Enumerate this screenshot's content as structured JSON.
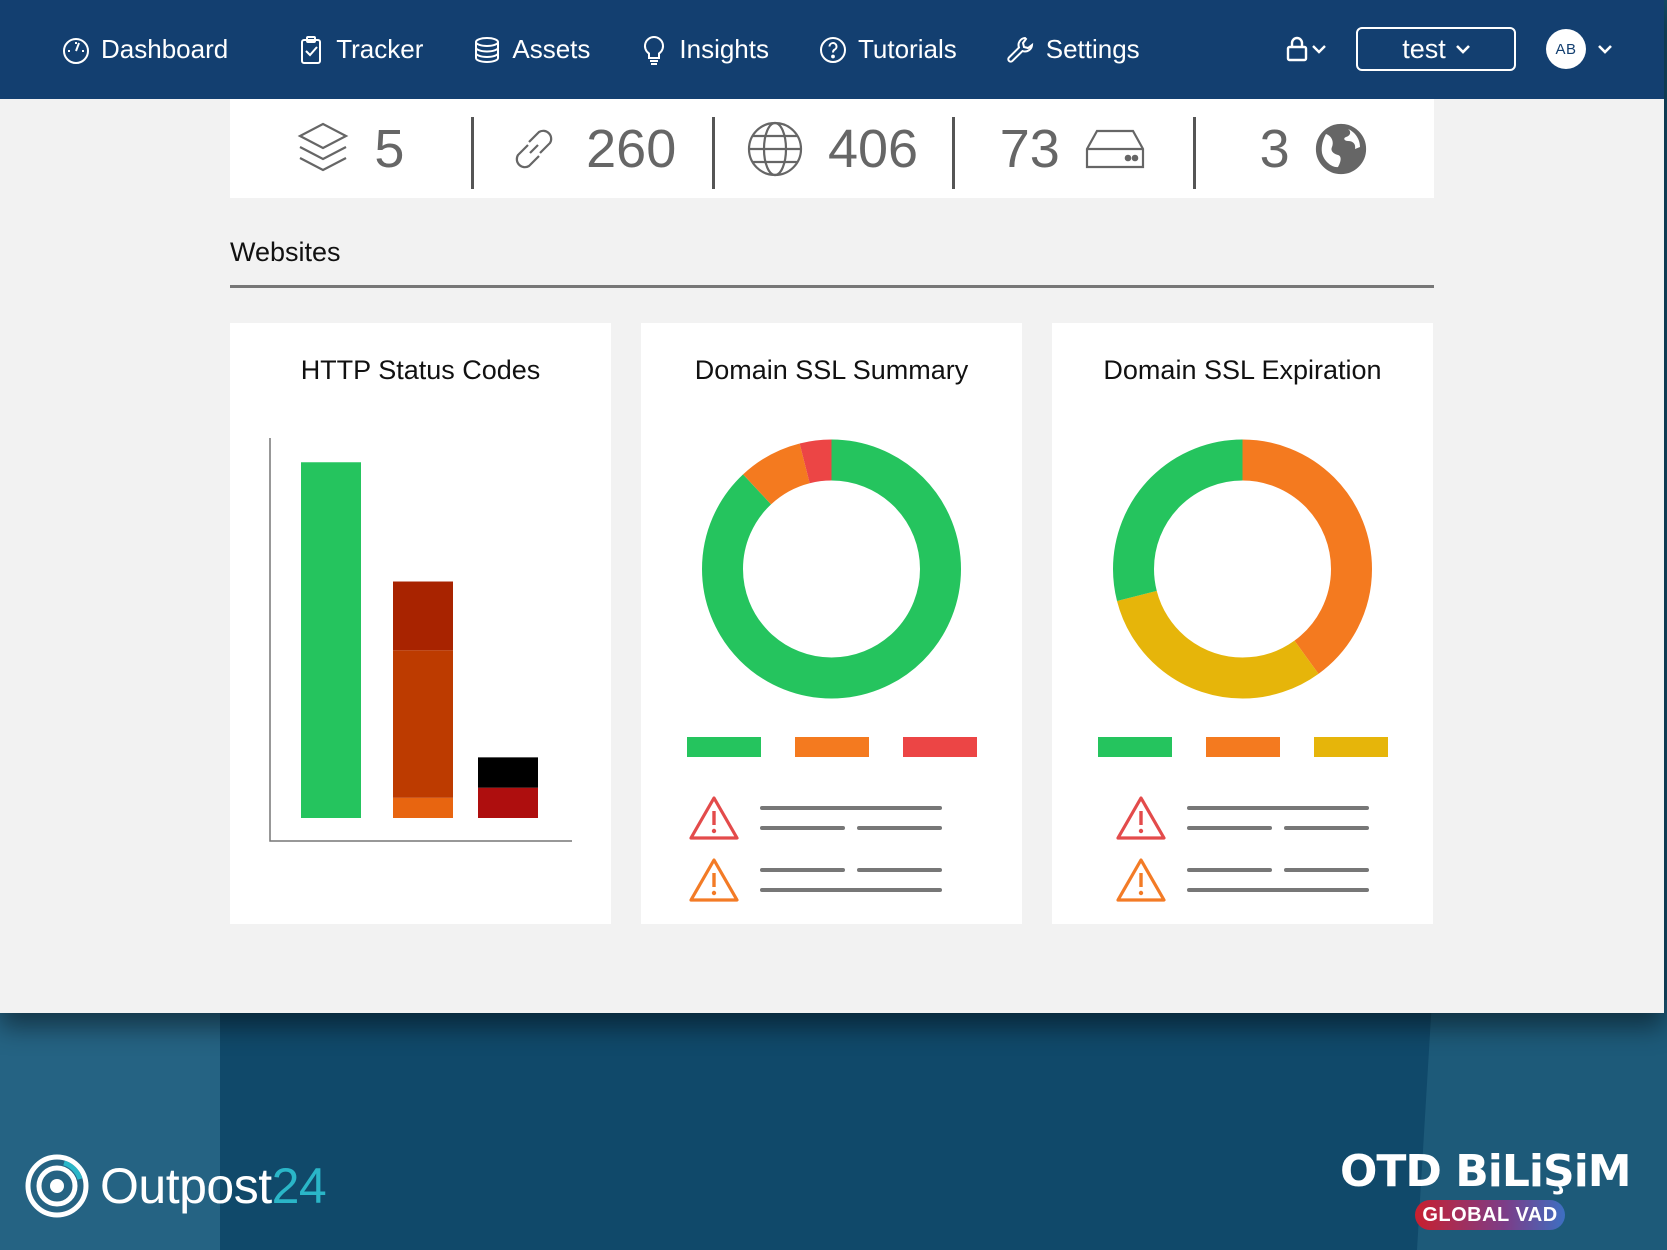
{
  "nav": {
    "items": [
      {
        "label": "Dashboard",
        "icon": "gauge-icon"
      },
      {
        "label": "Tracker",
        "icon": "clipboard-check-icon"
      },
      {
        "label": "Assets",
        "icon": "database-icon"
      },
      {
        "label": "Insights",
        "icon": "lightbulb-icon"
      },
      {
        "label": "Tutorials",
        "icon": "question-circle-icon"
      },
      {
        "label": "Settings",
        "icon": "wrench-icon"
      }
    ],
    "workspace": "test",
    "user_initials": "AB"
  },
  "stats": [
    {
      "value": "5",
      "icon": "layers-icon"
    },
    {
      "value": "260",
      "icon": "link-icon"
    },
    {
      "value": "406",
      "icon": "globe-icon"
    },
    {
      "value": "73",
      "icon": "server-drive-icon"
    },
    {
      "value": "3",
      "icon": "earth-icon"
    }
  ],
  "section": {
    "title": "Websites"
  },
  "cards": [
    {
      "title": "HTTP Status Codes"
    },
    {
      "title": "Domain SSL Summary"
    },
    {
      "title": "Domain SSL Expiration"
    }
  ],
  "colors": {
    "nav_bg": "#133f70",
    "green": "#25c45e",
    "orange": "#f47a1f",
    "red": "#ec4545",
    "yellow": "#e6b50a",
    "dark_red": "#a82300",
    "rust": "#bd3b00",
    "light_orange": "#e86510",
    "crimson": "#ae0e0e",
    "black": "#000000",
    "warn_red": "#e34b4b",
    "warn_orange": "#f37b26"
  },
  "chart_data": [
    {
      "type": "bar",
      "title": "HTTP Status Codes",
      "categories": [
        "",
        "",
        ""
      ],
      "series": [
        {
          "color": "#25c45e",
          "values": [
            352,
            0,
            0
          ]
        },
        {
          "color": "#e86510",
          "values": [
            0,
            20,
            0
          ]
        },
        {
          "color": "#bd3b00",
          "values": [
            0,
            146,
            0
          ]
        },
        {
          "color": "#a82300",
          "values": [
            0,
            68,
            0
          ]
        },
        {
          "color": "#ae0e0e",
          "values": [
            0,
            0,
            30
          ]
        },
        {
          "color": "#000000",
          "values": [
            0,
            0,
            30
          ]
        }
      ],
      "ylim": [
        0,
        376
      ]
    },
    {
      "type": "pie",
      "title": "Domain SSL Summary",
      "donut": true,
      "values": [
        88,
        8,
        4
      ],
      "colors": [
        "#25c45e",
        "#f47a1f",
        "#ec4545"
      ]
    },
    {
      "type": "pie",
      "title": "Domain SSL Expiration",
      "donut": true,
      "values": [
        40,
        31,
        29
      ],
      "colors": [
        "#f47a1f",
        "#e6b50a",
        "#25c45e"
      ]
    }
  ],
  "branding": {
    "left_word_a": "Outpost",
    "left_word_b": "24",
    "right_big": "OTD BiLiŞiM",
    "right_pill": "GLOBAL VAD"
  }
}
